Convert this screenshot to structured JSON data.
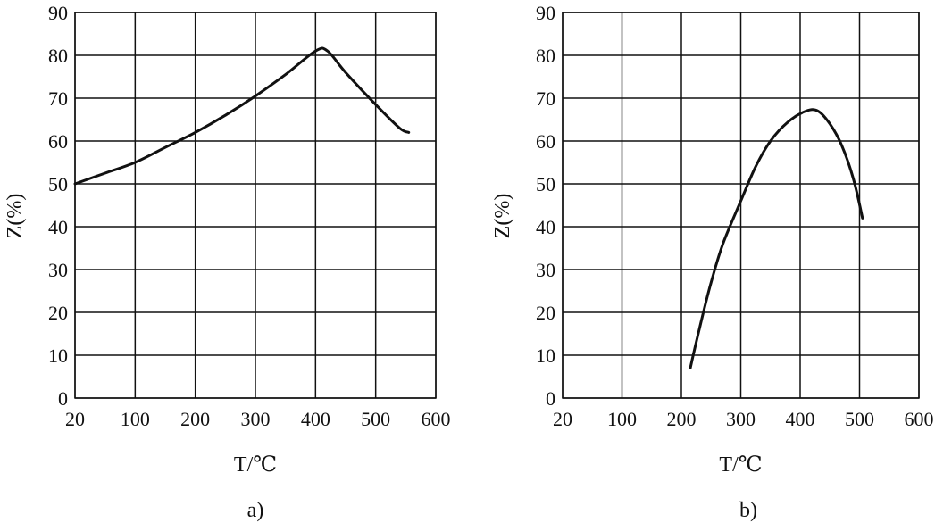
{
  "chart_data": [
    {
      "type": "line",
      "panel_label": "a)",
      "xlabel": "T/℃",
      "ylabel": "Z(%)",
      "x_ticks": [
        "20",
        "100",
        "200",
        "300",
        "400",
        "500",
        "600"
      ],
      "y_ticks": [
        "0",
        "10",
        "20",
        "30",
        "40",
        "50",
        "60",
        "70",
        "80",
        "90"
      ],
      "xlim": [
        20,
        600
      ],
      "ylim": [
        0,
        90
      ],
      "grid": true,
      "series": [
        {
          "x": [
            20,
            60,
            100,
            150,
            200,
            250,
            300,
            350,
            400,
            420,
            450,
            500,
            540,
            555
          ],
          "y": [
            50,
            52.5,
            55,
            58.5,
            62,
            66,
            70.5,
            75.5,
            81,
            81,
            76,
            68.5,
            63,
            62
          ]
        }
      ]
    },
    {
      "type": "line",
      "panel_label": "b)",
      "xlabel": "T/℃",
      "ylabel": "Z(%)",
      "x_ticks": [
        "20",
        "100",
        "200",
        "300",
        "400",
        "500",
        "600"
      ],
      "y_ticks": [
        "0",
        "10",
        "20",
        "30",
        "40",
        "50",
        "60",
        "70",
        "80",
        "90"
      ],
      "xlim": [
        20,
        600
      ],
      "ylim": [
        0,
        90
      ],
      "grid": true,
      "series": [
        {
          "x": [
            215,
            230,
            250,
            270,
            300,
            325,
            350,
            380,
            410,
            430,
            450,
            470,
            490,
            505
          ],
          "y": [
            7,
            16,
            27,
            36,
            46,
            54,
            60,
            64.5,
            67,
            67,
            64,
            59,
            51,
            42
          ]
        }
      ]
    }
  ]
}
